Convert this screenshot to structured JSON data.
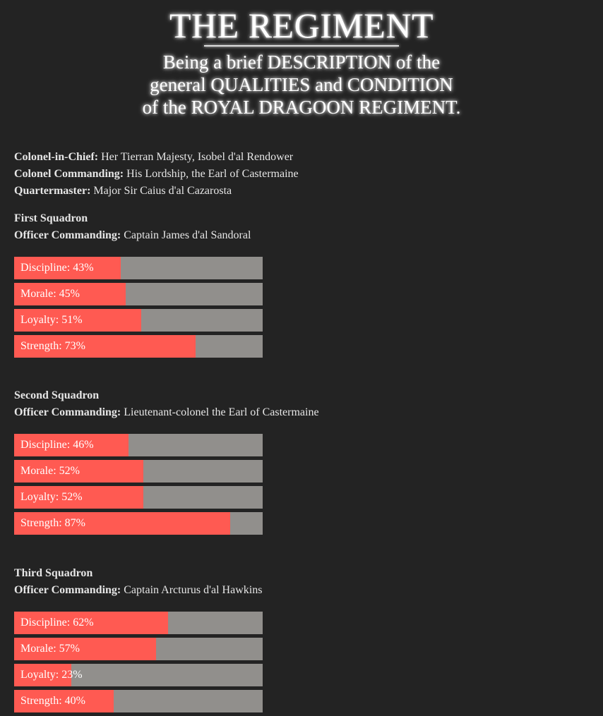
{
  "banner": {
    "title": "THE REGIMENT",
    "line1": "Being a brief DESCRIPTION of the",
    "line2": "general QUALITIES and CONDITION",
    "line3": "of the ROYAL DRAGOON REGIMENT."
  },
  "info": [
    {
      "label": "Colonel-in-Chief:",
      "value": "Her Tierran Majesty, Isobel d'al Rendower"
    },
    {
      "label": "Colonel Commanding:",
      "value": "His Lordship, the Earl of Castermaine"
    },
    {
      "label": "Quartermaster:",
      "value": "Major Sir Caius d'al Cazarosta"
    }
  ],
  "colors": {
    "fill": "#ff5a52",
    "track": "#918f8c",
    "background": "#232323"
  },
  "squadrons": [
    {
      "name": "First Squadron",
      "officer_label": "Officer Commanding:",
      "officer": "Captain James d'al Sandoral",
      "stats": [
        {
          "label": "Discipline: 43%",
          "value": 43
        },
        {
          "label": "Morale: 45%",
          "value": 45
        },
        {
          "label": "Loyalty: 51%",
          "value": 51
        },
        {
          "label": "Strength: 73%",
          "value": 73
        }
      ]
    },
    {
      "name": "Second Squadron",
      "officer_label": "Officer Commanding:",
      "officer": "Lieutenant-colonel the Earl of Castermaine",
      "stats": [
        {
          "label": "Discipline: 46%",
          "value": 46
        },
        {
          "label": "Morale: 52%",
          "value": 52
        },
        {
          "label": "Loyalty: 52%",
          "value": 52
        },
        {
          "label": "Strength: 87%",
          "value": 87
        }
      ]
    },
    {
      "name": "Third Squadron",
      "officer_label": "Officer Commanding:",
      "officer": "Captain Arcturus d'al Hawkins",
      "stats": [
        {
          "label": "Discipline: 62%",
          "value": 62
        },
        {
          "label": "Morale: 57%",
          "value": 57
        },
        {
          "label": "Loyalty: 23%",
          "value": 23
        },
        {
          "label": "Strength: 40%",
          "value": 40
        }
      ]
    }
  ]
}
